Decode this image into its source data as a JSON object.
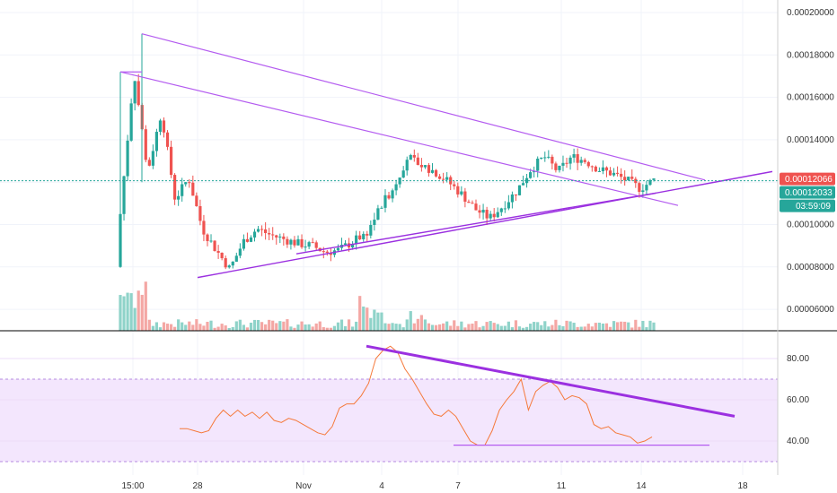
{
  "colors": {
    "up": "#26a69a",
    "down": "#ef5350",
    "up_volume": "#8fd3c9",
    "down_volume": "#f4a7a4",
    "trendline": "#b45cf0",
    "trendline_bold": "#9b30e0",
    "rsi_line": "#f5793a",
    "rsi_band": "#f3e6fd",
    "price_line": "#26a69a"
  },
  "price_axis": {
    "ticks": [
      "0.00020000",
      "0.00018000",
      "0.00016000",
      "0.00014000",
      "0.00012000",
      "0.00010000",
      "0.00008000",
      "0.00006000"
    ],
    "last_price_tag": "0.00012066",
    "current_price_tag": "0.00012033",
    "countdown": "03:59:09"
  },
  "rsi_axis": {
    "ticks": [
      "80.00",
      "60.00",
      "40.00"
    ],
    "band": [
      30,
      70
    ]
  },
  "time_axis": {
    "labels": [
      "15:00",
      "28",
      "Nov",
      "4",
      "7",
      "11",
      "14",
      "18"
    ]
  },
  "chart_data": [
    {
      "type": "candlestick",
      "title": "",
      "ylim": [
        5e-05,
        0.00021
      ],
      "grid": true,
      "price_close_path": [
        0.000105,
        0.000172,
        0.000125,
        0.000153,
        0.000112,
        0.000122,
        9.8e-05,
        8.8e-05,
        7.9e-05,
        9.2e-05,
        9.8e-05,
        9.5e-05,
        9.3e-05,
        9.1e-05,
        9e-05,
        8.7e-05,
        8.8e-05,
        9.2e-05,
        9.6e-05,
        0.000108,
        0.000118,
        0.000132,
        0.000128,
        0.000125,
        0.00012,
        0.000114,
        0.000107,
        0.000103,
        0.000109,
        0.000116,
        0.000126,
        0.000132,
        0.000125,
        0.000132,
        0.00013,
        0.000126,
        0.000124,
        0.000121,
        0.000117,
        0.000121
      ],
      "annotations": {
        "upper_line": [
          [
            0.00019,
            "start"
          ],
          [
            0.000121,
            "apex"
          ]
        ],
        "lower_line": [
          [
            7.5e-05,
            "start"
          ],
          [
            0.000124,
            "end"
          ]
        ],
        "last_price": 0.00012066,
        "current_price": 0.00012033
      }
    },
    {
      "type": "line",
      "title": "",
      "ylim": [
        25,
        90
      ],
      "grid": true,
      "series": [
        {
          "values": [
            46,
            46,
            45,
            44,
            45,
            51,
            55,
            52,
            55,
            52,
            54,
            51,
            54,
            50,
            49,
            51,
            50,
            48,
            46,
            44,
            43,
            47,
            56,
            58,
            58,
            62,
            68,
            80,
            84,
            86,
            83,
            75,
            70,
            64,
            58,
            53,
            52,
            55,
            52,
            46,
            40,
            38,
            38,
            45,
            55,
            60,
            64,
            70,
            55,
            64,
            67,
            69,
            66,
            60,
            62,
            61,
            58,
            48,
            46,
            47,
            44,
            43,
            42,
            39,
            40,
            42
          ]
        }
      ],
      "annotations": {
        "descending_line": [
          86,
          52
        ],
        "support_line": 38
      }
    }
  ]
}
